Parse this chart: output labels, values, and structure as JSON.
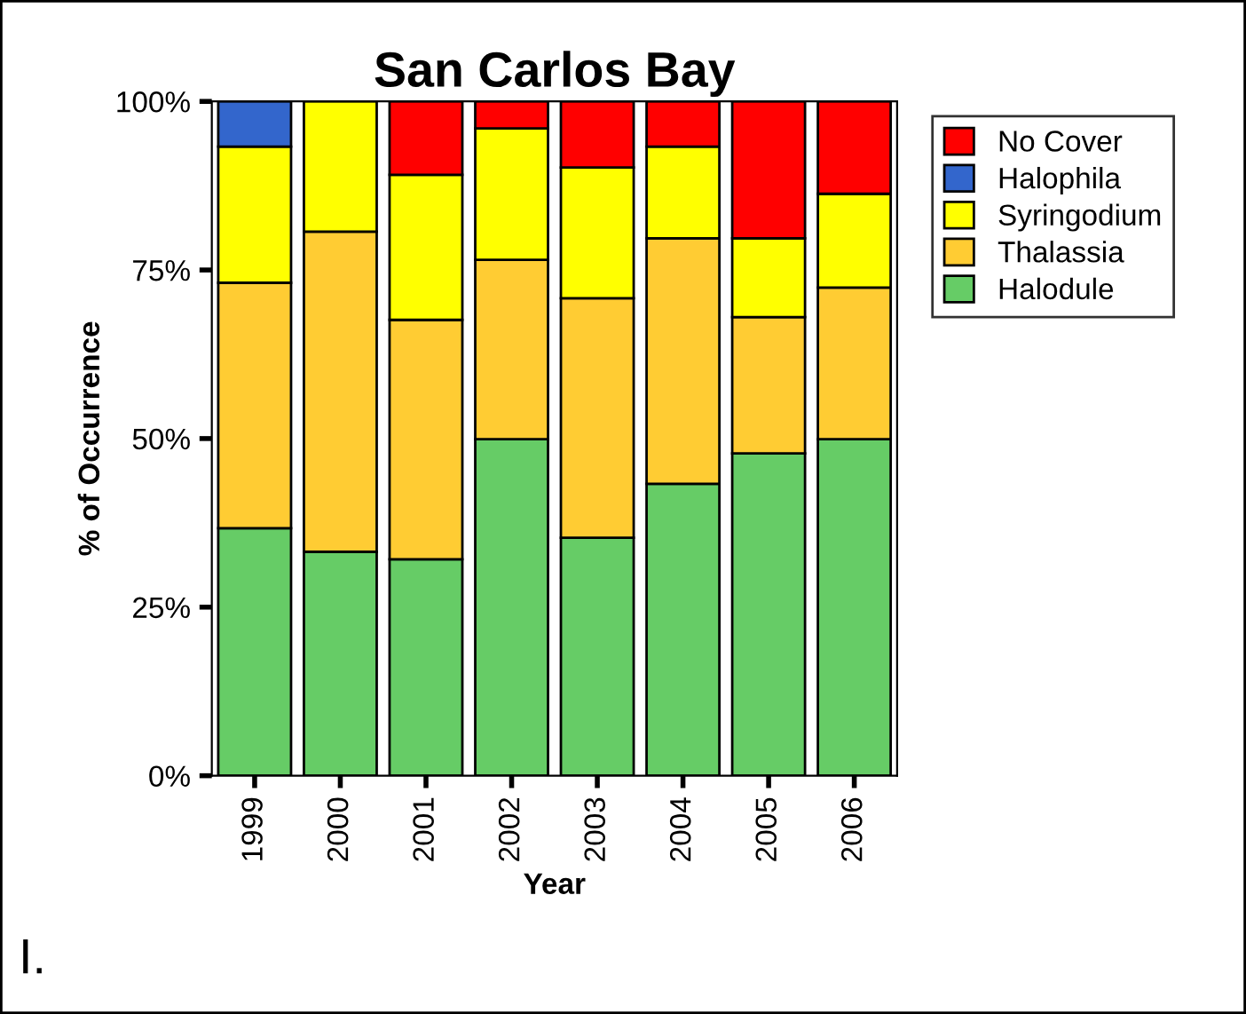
{
  "chart_data": {
    "type": "bar",
    "stacked": true,
    "title": "San Carlos Bay",
    "xlabel": "Year",
    "ylabel": "% of Occurrence",
    "categories": [
      "1999",
      "2000",
      "2001",
      "2002",
      "2003",
      "2004",
      "2005",
      "2006"
    ],
    "series": [
      {
        "name": "Halodule",
        "color": "#66cc66",
        "values": [
          36.7,
          33.2,
          32.1,
          49.9,
          35.3,
          43.3,
          47.8,
          49.9
        ]
      },
      {
        "name": "Thalassia",
        "color": "#ffcc33",
        "values": [
          36.4,
          47.5,
          35.5,
          26.6,
          35.5,
          36.4,
          20.2,
          22.5
        ]
      },
      {
        "name": "Syringodium",
        "color": "#ffff00",
        "values": [
          20.2,
          19.3,
          21.5,
          19.5,
          19.4,
          13.6,
          11.7,
          13.9
        ]
      },
      {
        "name": "Halophila",
        "color": "#3366cc",
        "values": [
          6.7,
          null,
          null,
          null,
          null,
          null,
          null,
          null
        ]
      },
      {
        "name": "No Cover",
        "color": "#ff0000",
        "values": [
          null,
          null,
          10.9,
          4.0,
          9.8,
          6.7,
          20.3,
          13.7
        ]
      }
    ],
    "ylim": [
      0,
      100
    ],
    "yticks": [
      {
        "value": 0,
        "label": "0%"
      },
      {
        "value": 25,
        "label": "25%"
      },
      {
        "value": 50,
        "label": "50%"
      },
      {
        "value": 75,
        "label": "75%"
      },
      {
        "value": 100,
        "label": "100%"
      }
    ],
    "grid": false,
    "legend": "top right",
    "annotations": [
      "I."
    ]
  }
}
